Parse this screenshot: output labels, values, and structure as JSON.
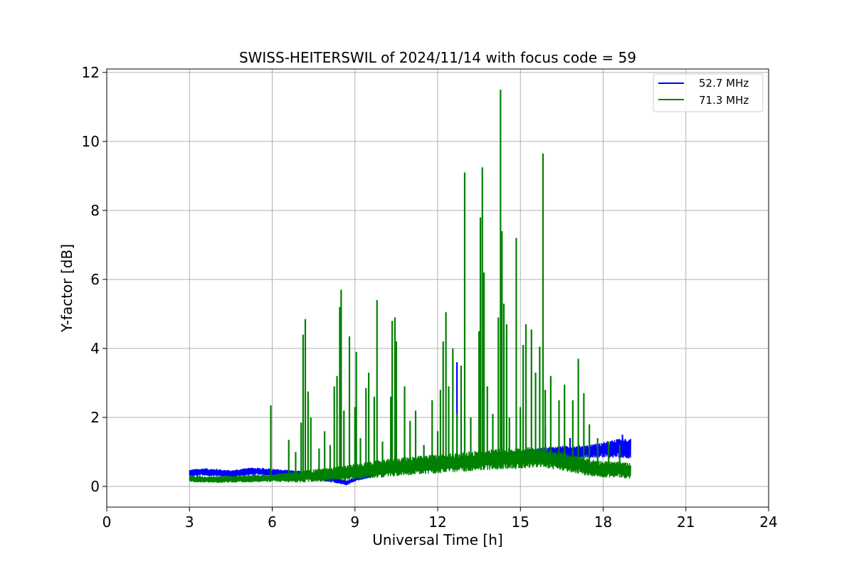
{
  "chart_data": {
    "type": "line",
    "title": "SWISS-HEITERSWIL of 2024/11/14 with focus code = 59",
    "xlabel": "Universal Time [h]",
    "ylabel": "Y-factor [dB]",
    "xlim": [
      0,
      24
    ],
    "ylim": [
      -0.6,
      12.1
    ],
    "xticks": [
      0,
      3,
      6,
      9,
      12,
      15,
      18,
      21,
      24
    ],
    "yticks": [
      0,
      2,
      4,
      6,
      8,
      10,
      12
    ],
    "grid": true,
    "legend_position": "top-right",
    "series": [
      {
        "name": "52.7 MHz",
        "color": "#0000ff",
        "baseline": [
          [
            3.0,
            0.38
          ],
          [
            3.5,
            0.42
          ],
          [
            4.0,
            0.4
          ],
          [
            4.5,
            0.36
          ],
          [
            5.0,
            0.42
          ],
          [
            5.5,
            0.44
          ],
          [
            6.0,
            0.4
          ],
          [
            6.5,
            0.38
          ],
          [
            7.0,
            0.34
          ],
          [
            7.5,
            0.3
          ],
          [
            8.0,
            0.24
          ],
          [
            8.5,
            0.14
          ],
          [
            8.7,
            0.1
          ],
          [
            9.0,
            0.22
          ],
          [
            9.5,
            0.32
          ],
          [
            10.0,
            0.44
          ],
          [
            10.5,
            0.5
          ],
          [
            11.0,
            0.52
          ],
          [
            11.5,
            0.55
          ],
          [
            12.0,
            0.6
          ],
          [
            12.5,
            0.62
          ],
          [
            13.0,
            0.65
          ],
          [
            13.5,
            0.72
          ],
          [
            14.0,
            0.78
          ],
          [
            14.5,
            0.85
          ],
          [
            15.0,
            0.9
          ],
          [
            15.5,
            0.95
          ],
          [
            16.0,
            0.98
          ],
          [
            16.5,
            1.0
          ],
          [
            17.0,
            1.0
          ],
          [
            17.5,
            1.02
          ],
          [
            18.0,
            1.05
          ],
          [
            18.5,
            1.1
          ],
          [
            19.0,
            1.12
          ]
        ],
        "noise_amplitude": [
          [
            3.0,
            0.1
          ],
          [
            8.0,
            0.1
          ],
          [
            8.6,
            0.06
          ],
          [
            12.0,
            0.1
          ],
          [
            15.0,
            0.14
          ],
          [
            17.5,
            0.18
          ],
          [
            19.0,
            0.3
          ]
        ],
        "spikes": [
          [
            12.7,
            3.6
          ],
          [
            15.9,
            1.75
          ],
          [
            16.8,
            1.4
          ],
          [
            18.7,
            1.5
          ]
        ]
      },
      {
        "name": "71.3 MHz",
        "color": "#008000",
        "baseline": [
          [
            3.0,
            0.22
          ],
          [
            4.0,
            0.2
          ],
          [
            5.0,
            0.22
          ],
          [
            6.0,
            0.24
          ],
          [
            7.0,
            0.28
          ],
          [
            8.0,
            0.34
          ],
          [
            9.0,
            0.42
          ],
          [
            10.0,
            0.52
          ],
          [
            11.0,
            0.6
          ],
          [
            12.0,
            0.65
          ],
          [
            13.0,
            0.72
          ],
          [
            14.0,
            0.78
          ],
          [
            14.5,
            0.8
          ],
          [
            15.0,
            0.82
          ],
          [
            15.5,
            0.85
          ],
          [
            16.0,
            0.8
          ],
          [
            16.5,
            0.72
          ],
          [
            17.0,
            0.64
          ],
          [
            17.5,
            0.55
          ],
          [
            18.0,
            0.5
          ],
          [
            18.5,
            0.48
          ],
          [
            19.0,
            0.45
          ]
        ],
        "noise_amplitude": [
          [
            3.0,
            0.08
          ],
          [
            6.0,
            0.1
          ],
          [
            7.0,
            0.16
          ],
          [
            10.0,
            0.25
          ],
          [
            13.0,
            0.28
          ],
          [
            15.0,
            0.3
          ],
          [
            17.0,
            0.25
          ],
          [
            19.0,
            0.22
          ]
        ],
        "spikes": [
          [
            5.95,
            2.35
          ],
          [
            6.6,
            1.35
          ],
          [
            6.85,
            1.0
          ],
          [
            7.05,
            1.85
          ],
          [
            7.12,
            4.4
          ],
          [
            7.2,
            4.85
          ],
          [
            7.3,
            2.75
          ],
          [
            7.4,
            2.0
          ],
          [
            7.7,
            1.1
          ],
          [
            7.9,
            1.6
          ],
          [
            8.1,
            1.2
          ],
          [
            8.25,
            2.9
          ],
          [
            8.35,
            3.2
          ],
          [
            8.45,
            5.2
          ],
          [
            8.5,
            5.7
          ],
          [
            8.6,
            2.2
          ],
          [
            8.8,
            4.35
          ],
          [
            9.0,
            2.3
          ],
          [
            9.05,
            3.9
          ],
          [
            9.2,
            1.4
          ],
          [
            9.4,
            2.85
          ],
          [
            9.5,
            3.3
          ],
          [
            9.7,
            2.6
          ],
          [
            9.8,
            5.4
          ],
          [
            10.0,
            1.3
          ],
          [
            10.3,
            2.6
          ],
          [
            10.35,
            4.8
          ],
          [
            10.45,
            4.9
          ],
          [
            10.5,
            4.2
          ],
          [
            10.8,
            2.9
          ],
          [
            11.0,
            1.9
          ],
          [
            11.2,
            2.2
          ],
          [
            11.5,
            1.2
          ],
          [
            11.8,
            2.5
          ],
          [
            12.0,
            1.6
          ],
          [
            12.1,
            2.8
          ],
          [
            12.2,
            4.2
          ],
          [
            12.3,
            5.05
          ],
          [
            12.4,
            2.9
          ],
          [
            12.55,
            4.0
          ],
          [
            12.7,
            2.1
          ],
          [
            12.85,
            3.5
          ],
          [
            12.98,
            9.1
          ],
          [
            13.2,
            2.0
          ],
          [
            13.5,
            4.5
          ],
          [
            13.55,
            7.8
          ],
          [
            13.62,
            9.25
          ],
          [
            13.68,
            6.2
          ],
          [
            13.8,
            2.9
          ],
          [
            14.0,
            2.1
          ],
          [
            14.2,
            4.9
          ],
          [
            14.28,
            11.5
          ],
          [
            14.33,
            7.4
          ],
          [
            14.4,
            5.3
          ],
          [
            14.5,
            4.7
          ],
          [
            14.6,
            2.0
          ],
          [
            14.85,
            7.2
          ],
          [
            15.0,
            2.3
          ],
          [
            15.1,
            4.1
          ],
          [
            15.2,
            4.7
          ],
          [
            15.4,
            4.55
          ],
          [
            15.55,
            3.3
          ],
          [
            15.7,
            4.05
          ],
          [
            15.82,
            9.65
          ],
          [
            15.9,
            2.8
          ],
          [
            16.1,
            3.2
          ],
          [
            16.4,
            2.5
          ],
          [
            16.6,
            2.95
          ],
          [
            16.9,
            2.5
          ],
          [
            17.1,
            3.7
          ],
          [
            17.3,
            2.7
          ],
          [
            17.5,
            1.8
          ],
          [
            17.8,
            1.4
          ],
          [
            18.2,
            1.3
          ],
          [
            18.6,
            1.2
          ]
        ]
      }
    ]
  }
}
